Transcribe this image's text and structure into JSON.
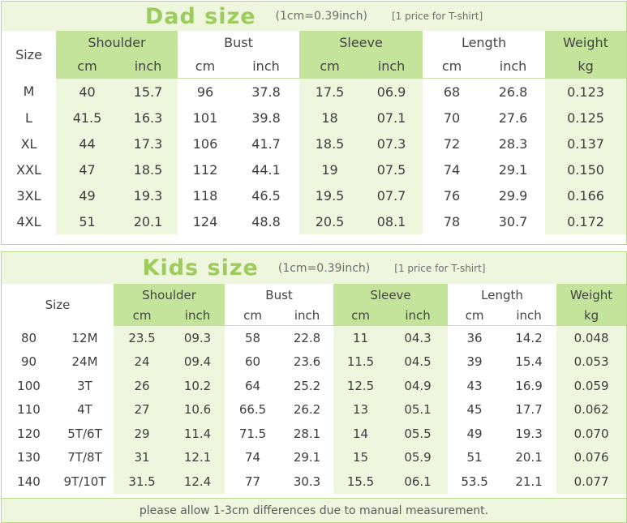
{
  "dad": {
    "title": "Dad size",
    "conversion": "(1cm=0.39inch)",
    "note": "[1 price for T-shirt]",
    "size_header": "Size",
    "groups": [
      "Shoulder",
      "Bust",
      "Sleeve",
      "Length",
      "Weight"
    ],
    "units": [
      "cm",
      "inch",
      "cm",
      "inch",
      "cm",
      "inch",
      "cm",
      "inch",
      "kg"
    ],
    "rows": [
      [
        "M",
        "40",
        "15.7",
        "96",
        "37.8",
        "17.5",
        "06.9",
        "68",
        "26.8",
        "0.123"
      ],
      [
        "L",
        "41.5",
        "16.3",
        "101",
        "39.8",
        "18",
        "07.1",
        "70",
        "27.6",
        "0.125"
      ],
      [
        "XL",
        "44",
        "17.3",
        "106",
        "41.7",
        "18.5",
        "07.3",
        "72",
        "28.3",
        "0.137"
      ],
      [
        "XXL",
        "47",
        "18.5",
        "112",
        "44.1",
        "19",
        "07.5",
        "74",
        "29.1",
        "0.150"
      ],
      [
        "3XL",
        "49",
        "19.3",
        "118",
        "46.5",
        "19.5",
        "07.7",
        "76",
        "29.9",
        "0.166"
      ],
      [
        "4XL",
        "51",
        "20.1",
        "124",
        "48.8",
        "20.5",
        "08.1",
        "78",
        "30.7",
        "0.172"
      ]
    ]
  },
  "kids": {
    "title": "Kids size",
    "conversion": "(1cm=0.39inch)",
    "note": "[1 price for T-shirt]",
    "size_header": "Size",
    "groups": [
      "Shoulder",
      "Bust",
      "Sleeve",
      "Length",
      "Weight"
    ],
    "units": [
      "cm",
      "inch",
      "cm",
      "inch",
      "cm",
      "inch",
      "cm",
      "inch",
      "kg"
    ],
    "rows": [
      [
        "80",
        "12M",
        "23.5",
        "09.3",
        "58",
        "22.8",
        "11",
        "04.3",
        "36",
        "14.2",
        "0.048"
      ],
      [
        "90",
        "24M",
        "24",
        "09.4",
        "60",
        "23.6",
        "11.5",
        "04.5",
        "39",
        "15.4",
        "0.053"
      ],
      [
        "100",
        "3T",
        "26",
        "10.2",
        "64",
        "25.2",
        "12.5",
        "04.9",
        "43",
        "16.9",
        "0.059"
      ],
      [
        "110",
        "4T",
        "27",
        "10.6",
        "66.5",
        "26.2",
        "13",
        "05.1",
        "45",
        "17.7",
        "0.062"
      ],
      [
        "120",
        "5T/6T",
        "29",
        "11.4",
        "71.5",
        "28.1",
        "14",
        "05.5",
        "49",
        "19.3",
        "0.070"
      ],
      [
        "130",
        "7T/8T",
        "31",
        "12.1",
        "74",
        "29.1",
        "15",
        "05.9",
        "51",
        "20.1",
        "0.076"
      ],
      [
        "140",
        "9T/10T",
        "31.5",
        "12.4",
        "77",
        "30.3",
        "15.5",
        "06.1",
        "53.5",
        "21.1",
        "0.077"
      ]
    ],
    "footer": "please allow 1-3cm differences due to manual measurement."
  }
}
